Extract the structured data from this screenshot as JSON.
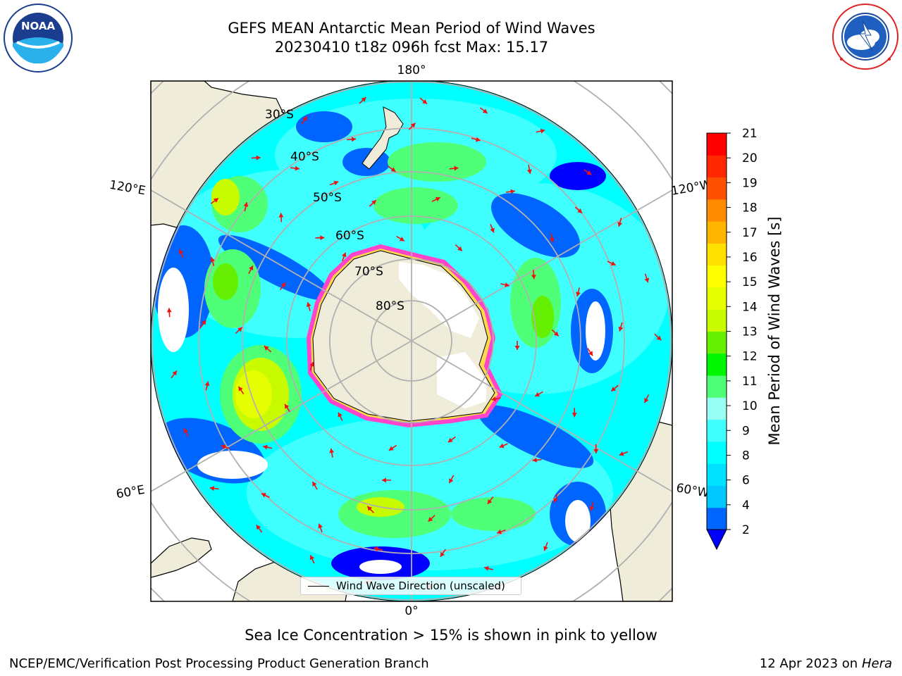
{
  "header": {
    "title_line1": "GEFS MEAN Antarctic Mean Period of Wind Waves",
    "title_line2": "20230410 t18z 096h fcst   Max: 15.17"
  },
  "logos": {
    "left": {
      "icon": "noaa-logo-icon",
      "text": "NOAA",
      "ring_text": "NATIONAL OCEANIC AND ATMOSPHERIC ADMINISTRATION · U.S. DEPARTMENT OF COMMERCE"
    },
    "right": {
      "icon": "nws-logo-icon",
      "ring_text": "NATIONAL WEATHER SERVICE"
    }
  },
  "map": {
    "projection": "south-polar-stereographic",
    "longitude_labels": {
      "top": "180°",
      "bottom": "0°",
      "upper_left": "120°E",
      "lower_left": "60°E",
      "upper_right": "120°W",
      "lower_right": "60°W"
    },
    "latitude_labels": [
      "30°S",
      "40°S",
      "50°S",
      "60°S",
      "70°S",
      "80°S"
    ],
    "colors": {
      "land": "#efedda",
      "ocean_background": "#00ffff",
      "grid": "#b0b0b0",
      "arrow": "#ee1111",
      "sea_ice_edge": "#ff44cc"
    }
  },
  "colorbar": {
    "title": "Mean Period of Wind Waves [s]",
    "ticks": [
      "21",
      "20",
      "19",
      "18",
      "17",
      "16",
      "15",
      "14",
      "13",
      "12",
      "11",
      "10",
      "9",
      "8",
      "6",
      "4",
      "2"
    ],
    "colors_bottom_to_top": [
      "#0064ff",
      "#00c8ff",
      "#00e1ff",
      "#00ffff",
      "#40ffff",
      "#98fff4",
      "#50ff78",
      "#00f500",
      "#64f000",
      "#c8fa00",
      "#e6ff00",
      "#ffff00",
      "#ffe100",
      "#ffb400",
      "#ff8c00",
      "#ff5000",
      "#ff2800",
      "#ff0000"
    ],
    "under_color": "#0000ff"
  },
  "legend": {
    "label": "Wind Wave Direction (unscaled)"
  },
  "note": "Sea Ice Concentration > 15% is shown in pink to yellow",
  "footer": {
    "left": "NCEP/EMC/Verification Post Processing Product Generation Branch",
    "date": "12 Apr 2023 on ",
    "machine": "Hera"
  }
}
